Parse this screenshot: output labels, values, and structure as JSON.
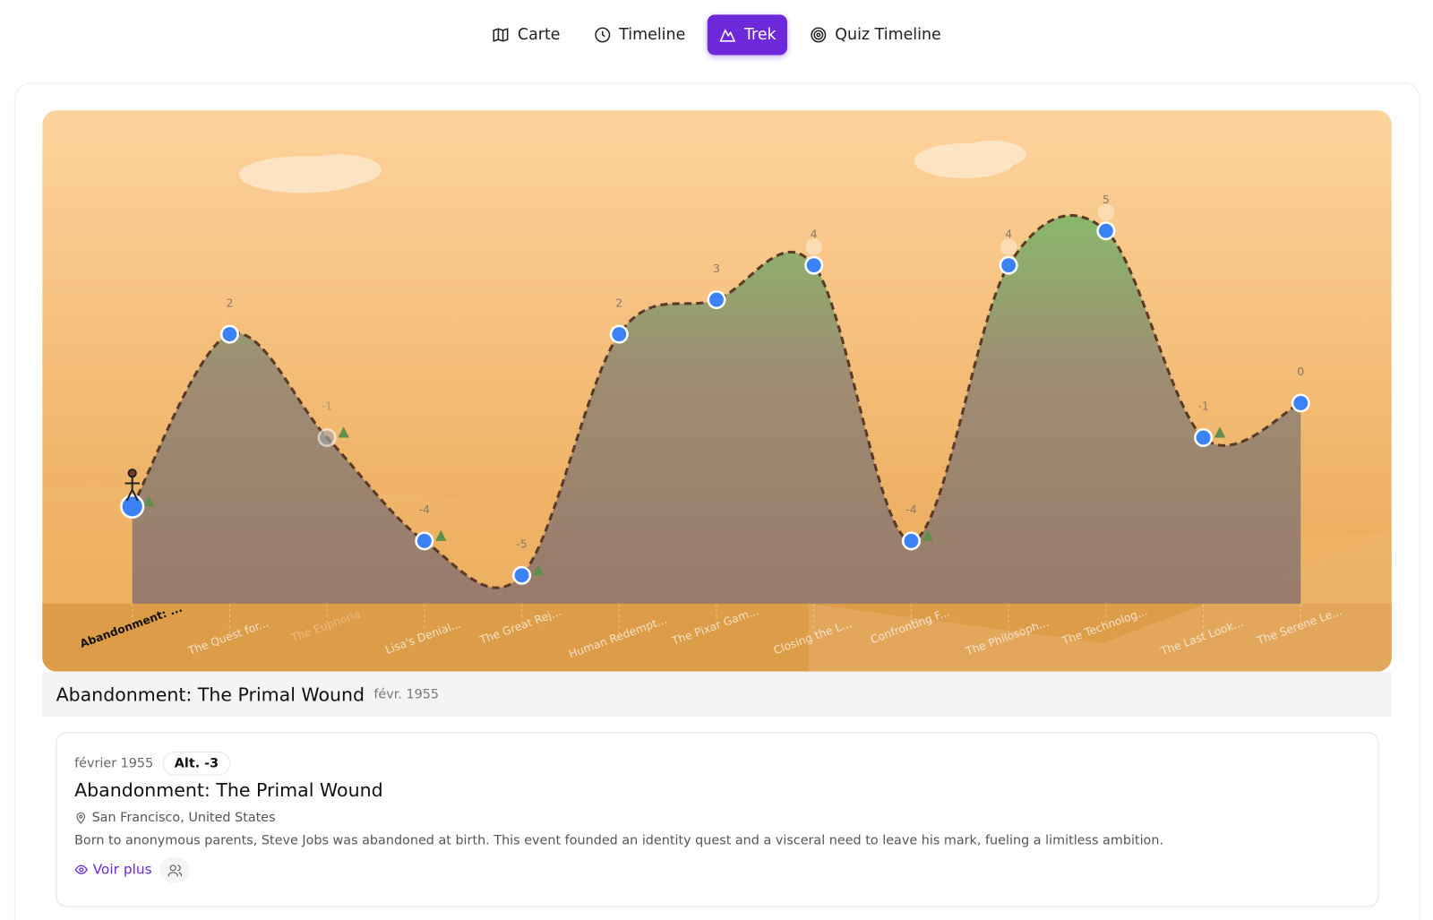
{
  "nav": {
    "tabs": [
      "Carte",
      "Timeline",
      "Trek",
      "Quiz Timeline"
    ]
  },
  "chart_data": {
    "type": "line",
    "categories": [
      "Abandonment: ...",
      "The Quest for...",
      "The Euphoria",
      "Lisa's Denial...",
      "The Great Rej...",
      "Human Redempt...",
      "The Pixar Gam...",
      "Closing the L...",
      "Confronting F...",
      "The Philosoph...",
      "The Technolog...",
      "The Last Look...",
      "The Serene Le..."
    ],
    "values": [
      -3,
      2,
      -1,
      -4,
      -5,
      2,
      3,
      4,
      -4,
      4,
      5,
      -1,
      0
    ],
    "ylim": [
      -6,
      8.5
    ],
    "color": "#3b82f6"
  },
  "selected": {
    "title": "Abandonment: The Primal Wound",
    "date_short": "févr. 1955",
    "date": "février 1955",
    "altitude": "Alt. -3",
    "location": "San Francisco, United States",
    "description": "Born to anonymous parents, Steve Jobs was abandoned at birth. This event founded an identity quest and a visceral need to leave his mark, fueling a limitless ambition.",
    "more": "Voir plus"
  }
}
